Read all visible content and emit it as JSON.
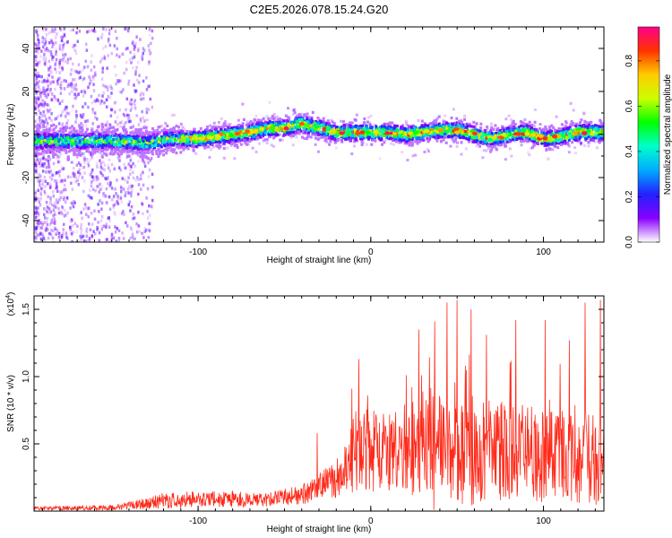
{
  "figure_title": "C2E5.2026.078.15.24.G20",
  "chart_data": [
    {
      "type": "heatmap",
      "xlabel": "Height of straight line (km)",
      "ylabel": "Frequency (Hz)",
      "xlim": [
        -195,
        135
      ],
      "ylim": [
        -50,
        50
      ],
      "x_ticks": [
        -100,
        0,
        100
      ],
      "y_ticks": [
        -40,
        -20,
        0,
        20,
        40
      ],
      "x_tick_labels": [
        "-100",
        "0",
        "100"
      ],
      "y_tick_labels": [
        "-40",
        "-20",
        "0",
        "20",
        "40"
      ],
      "colorbar": {
        "label": "Normalized spectral amplitude",
        "range": [
          0,
          0.95
        ],
        "ticks": [
          0.0,
          0.2,
          0.4,
          0.6,
          0.8
        ],
        "tick_labels": [
          "0.0",
          "0.2",
          "0.4",
          "0.6",
          "0.8"
        ],
        "colormap": [
          "#ffffff",
          "#8800ff",
          "#2222ff",
          "#00aaff",
          "#00ffcc",
          "#00ff00",
          "#ccff00",
          "#ffcc00",
          "#ff3300",
          "#ff0088"
        ]
      },
      "ridge_frequency_hz": [
        {
          "x": -195,
          "y": -3
        },
        {
          "x": -170,
          "y": -3
        },
        {
          "x": -150,
          "y": -3
        },
        {
          "x": -130,
          "y": -4
        },
        {
          "x": -115,
          "y": -2
        },
        {
          "x": -100,
          "y": -2
        },
        {
          "x": -90,
          "y": -1
        },
        {
          "x": -80,
          "y": 0
        },
        {
          "x": -70,
          "y": 1
        },
        {
          "x": -60,
          "y": 3
        },
        {
          "x": -50,
          "y": 3
        },
        {
          "x": -40,
          "y": 5
        },
        {
          "x": -30,
          "y": 3
        },
        {
          "x": -20,
          "y": 1
        },
        {
          "x": -10,
          "y": 1
        },
        {
          "x": 0,
          "y": 1
        },
        {
          "x": 10,
          "y": 1
        },
        {
          "x": 20,
          "y": 0
        },
        {
          "x": 30,
          "y": 1
        },
        {
          "x": 40,
          "y": 2
        },
        {
          "x": 50,
          "y": 2
        },
        {
          "x": 60,
          "y": 0
        },
        {
          "x": 70,
          "y": -2
        },
        {
          "x": 80,
          "y": 0
        },
        {
          "x": 90,
          "y": 1
        },
        {
          "x": 100,
          "y": -2
        },
        {
          "x": 110,
          "y": -1
        },
        {
          "x": 120,
          "y": 1
        },
        {
          "x": 135,
          "y": 1
        }
      ],
      "scattered_noise_below_km": -135
    },
    {
      "type": "line",
      "xlabel": "Height of straight line (km)",
      "ylabel": "SNR (10 * v/v)",
      "scale_label_prefix": "(x10",
      "scale_label_exponent": "4",
      "scale_label_suffix": ")",
      "xlim": [
        -195,
        135
      ],
      "ylim": [
        0,
        1.6
      ],
      "x_ticks": [
        -100,
        0,
        100
      ],
      "y_ticks": [
        0.5,
        1.0,
        1.5
      ],
      "x_tick_labels": [
        "-100",
        "0",
        "100"
      ],
      "y_tick_labels": [
        "0.5",
        "1.0",
        "1.5"
      ],
      "series_color": "#ff2a1a",
      "envelope": [
        {
          "x": -195,
          "base": 0.015,
          "amp": 0.03
        },
        {
          "x": -150,
          "base": 0.02,
          "amp": 0.04
        },
        {
          "x": -135,
          "base": 0.04,
          "amp": 0.07
        },
        {
          "x": -120,
          "base": 0.06,
          "amp": 0.12
        },
        {
          "x": -100,
          "base": 0.07,
          "amp": 0.12
        },
        {
          "x": -80,
          "base": 0.07,
          "amp": 0.12
        },
        {
          "x": -60,
          "base": 0.07,
          "amp": 0.1
        },
        {
          "x": -40,
          "base": 0.1,
          "amp": 0.15
        },
        {
          "x": -30,
          "base": 0.15,
          "amp": 0.2
        },
        {
          "x": -20,
          "base": 0.2,
          "amp": 0.3
        },
        {
          "x": -12,
          "base": 0.3,
          "amp": 0.5
        },
        {
          "x": -8,
          "base": 0.4,
          "amp": 0.7
        },
        {
          "x": 0,
          "base": 0.35,
          "amp": 0.6
        },
        {
          "x": 20,
          "base": 0.35,
          "amp": 0.7
        },
        {
          "x": 40,
          "base": 0.3,
          "amp": 0.9
        },
        {
          "x": 60,
          "base": 0.3,
          "amp": 0.8
        },
        {
          "x": 80,
          "base": 0.35,
          "amp": 0.75
        },
        {
          "x": 100,
          "base": 0.3,
          "amp": 0.7
        },
        {
          "x": 120,
          "base": 0.3,
          "amp": 0.7
        },
        {
          "x": 135,
          "base": 0.3,
          "amp": 0.8
        }
      ],
      "spikes": [
        {
          "x": -11,
          "y": 0.91
        },
        {
          "x": -7,
          "y": 1.13
        },
        {
          "x": -31,
          "y": 0.58
        },
        {
          "x": 28,
          "y": 1.35
        },
        {
          "x": 37,
          "y": 1.41
        },
        {
          "x": 44,
          "y": 1.55
        },
        {
          "x": 50,
          "y": 1.57
        },
        {
          "x": 58,
          "y": 1.5
        },
        {
          "x": 67,
          "y": 1.31
        },
        {
          "x": 84,
          "y": 1.42
        },
        {
          "x": 101,
          "y": 1.42
        },
        {
          "x": 115,
          "y": 1.27
        },
        {
          "x": 124,
          "y": 1.55
        },
        {
          "x": 133,
          "y": 1.57
        }
      ]
    }
  ]
}
